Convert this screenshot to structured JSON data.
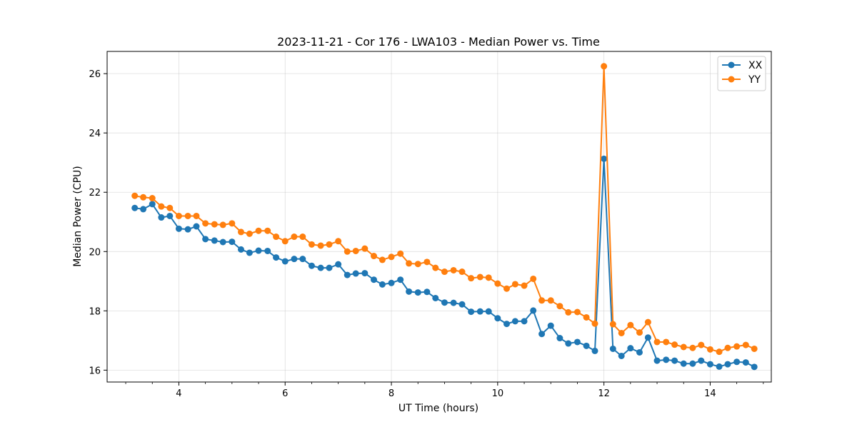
{
  "chart_data": {
    "type": "line",
    "title": "2023-11-21 - Cor 176 - LWA103 - Median Power vs. Time",
    "xlabel": "UT Time (hours)",
    "ylabel": "Median Power (CPU)",
    "xlim": [
      2.65,
      15.15
    ],
    "ylim": [
      15.6,
      26.75
    ],
    "x_ticks": [
      4,
      6,
      8,
      10,
      12,
      14
    ],
    "x_tick_labels": [
      "4",
      "6",
      "8",
      "10",
      "12",
      "14"
    ],
    "x_minor_step": 0.5,
    "y_ticks": [
      16,
      18,
      20,
      22,
      24,
      26
    ],
    "y_tick_labels": [
      "16",
      "18",
      "20",
      "22",
      "24",
      "26"
    ],
    "grid": true,
    "legend_position": "top-right",
    "colors": {
      "XX": "#1f77b4",
      "YY": "#ff7f0e"
    },
    "x": [
      3.17,
      3.33,
      3.5,
      3.67,
      3.83,
      4.0,
      4.17,
      4.33,
      4.5,
      4.67,
      4.83,
      5.0,
      5.17,
      5.33,
      5.5,
      5.67,
      5.83,
      6.0,
      6.17,
      6.33,
      6.5,
      6.67,
      6.83,
      7.0,
      7.17,
      7.33,
      7.5,
      7.67,
      7.83,
      8.0,
      8.17,
      8.33,
      8.5,
      8.67,
      8.83,
      9.0,
      9.17,
      9.33,
      9.5,
      9.67,
      9.83,
      10.0,
      10.17,
      10.33,
      10.5,
      10.67,
      10.83,
      11.0,
      11.17,
      11.33,
      11.5,
      11.67,
      11.83,
      12.0,
      12.17,
      12.33,
      12.5,
      12.67,
      12.83,
      13.0,
      13.17,
      13.33,
      13.5,
      13.67,
      13.83,
      14.0,
      14.17,
      14.33,
      14.5,
      14.67,
      14.83
    ],
    "series": [
      {
        "name": "XX",
        "values": [
          21.47,
          21.43,
          21.6,
          21.15,
          21.2,
          20.77,
          20.75,
          20.85,
          20.42,
          20.37,
          20.32,
          20.33,
          20.07,
          19.96,
          20.03,
          20.02,
          19.8,
          19.67,
          19.75,
          19.75,
          19.52,
          19.45,
          19.45,
          19.57,
          19.21,
          19.26,
          19.27,
          19.05,
          18.89,
          18.94,
          19.05,
          18.65,
          18.62,
          18.64,
          18.43,
          18.28,
          18.27,
          18.22,
          17.97,
          17.98,
          17.98,
          17.75,
          17.56,
          17.65,
          17.65,
          18.01,
          17.22,
          17.5,
          17.08,
          16.9,
          16.95,
          16.82,
          16.65,
          23.13,
          16.72,
          16.48,
          16.74,
          16.6,
          17.1,
          16.32,
          16.35,
          16.32,
          16.22,
          16.22,
          16.32,
          16.2,
          16.12,
          16.2,
          16.28,
          16.26,
          16.11
        ]
      },
      {
        "name": "YY",
        "values": [
          21.88,
          21.83,
          21.8,
          21.52,
          21.47,
          21.2,
          21.2,
          21.2,
          20.95,
          20.92,
          20.9,
          20.95,
          20.66,
          20.6,
          20.7,
          20.7,
          20.5,
          20.35,
          20.5,
          20.5,
          20.24,
          20.2,
          20.24,
          20.35,
          20.0,
          20.02,
          20.1,
          19.85,
          19.72,
          19.82,
          19.93,
          19.6,
          19.58,
          19.65,
          19.45,
          19.32,
          19.37,
          19.32,
          19.1,
          19.14,
          19.12,
          18.92,
          18.75,
          18.9,
          18.85,
          19.08,
          18.35,
          18.35,
          18.16,
          17.95,
          17.96,
          17.78,
          17.57,
          26.25,
          17.55,
          17.25,
          17.52,
          17.27,
          17.62,
          16.95,
          16.95,
          16.86,
          16.78,
          16.75,
          16.85,
          16.7,
          16.62,
          16.75,
          16.8,
          16.85,
          16.72
        ]
      }
    ]
  }
}
